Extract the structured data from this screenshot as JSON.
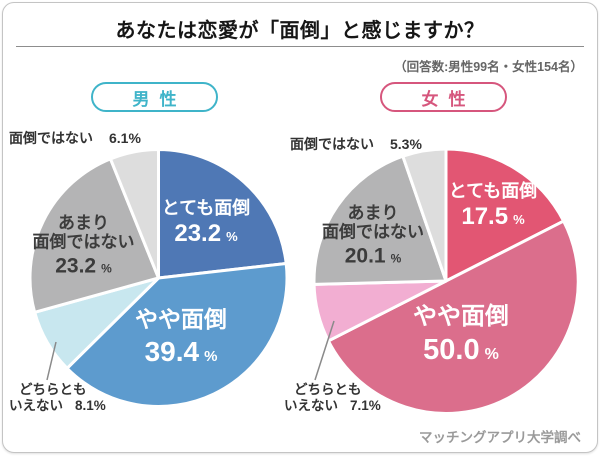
{
  "page": {
    "title": "あなたは恋愛が「面倒」と感じますか？",
    "respondents_note": "（回答数:男性99名・女性154名）",
    "source_credit": "マッチングアプリ大学調べ"
  },
  "chart_data": [
    {
      "type": "pie",
      "group_label": "男性",
      "accent_color": "#3fb4c9",
      "unit": "%",
      "rotation": "clockwise-from-12-oclock",
      "categories": [
        "とても面倒",
        "やや面倒",
        "どちらともいえない",
        "あまり面倒ではない",
        "面倒ではない"
      ],
      "values": [
        23.2,
        39.4,
        8.1,
        23.2,
        6.1
      ],
      "colors": [
        "#4f78b5",
        "#5d9bce",
        "#c8e7ef",
        "#b4b4b5",
        "#dddddd"
      ],
      "inside_labels": [
        {
          "slice": 0,
          "lines": [
            "とても面倒"
          ],
          "value": "23.2",
          "text_color": "#ffffff"
        },
        {
          "slice": 1,
          "lines": [
            "やや面倒"
          ],
          "value": "39.4",
          "text_color": "#ffffff"
        },
        {
          "slice": 3,
          "lines": [
            "あまり",
            "面倒ではない"
          ],
          "value": "23.2",
          "text_color": "#3c3c3c"
        }
      ],
      "outside_labels": {
        "top": {
          "label": "面倒ではない",
          "value": "6.1%"
        },
        "bottom": {
          "lines": [
            "どちらとも",
            "いえない"
          ],
          "value": "8.1%"
        }
      }
    },
    {
      "type": "pie",
      "group_label": "女性",
      "accent_color": "#d6567d",
      "unit": "%",
      "rotation": "clockwise-from-12-oclock",
      "categories": [
        "とても面倒",
        "やや面倒",
        "どちらともいえない",
        "あまり面倒ではない",
        "面倒ではない"
      ],
      "values": [
        17.5,
        50.0,
        7.1,
        20.1,
        5.3
      ],
      "colors": [
        "#e25673",
        "#db6e8c",
        "#f2aed2",
        "#b4b4b5",
        "#dddddd"
      ],
      "inside_labels": [
        {
          "slice": 0,
          "lines": [
            "とても面倒"
          ],
          "value": "17.5",
          "text_color": "#ffffff"
        },
        {
          "slice": 1,
          "lines": [
            "やや面倒"
          ],
          "value": "50.0",
          "text_color": "#ffffff"
        },
        {
          "slice": 3,
          "lines": [
            "あまり",
            "面倒ではない"
          ],
          "value": "20.1",
          "text_color": "#3c3c3c"
        }
      ],
      "outside_labels": {
        "top": {
          "label": "面倒ではない",
          "value": "5.3%"
        },
        "bottom": {
          "lines": [
            "どちらとも",
            "いえない"
          ],
          "value": "7.1%"
        }
      }
    }
  ]
}
